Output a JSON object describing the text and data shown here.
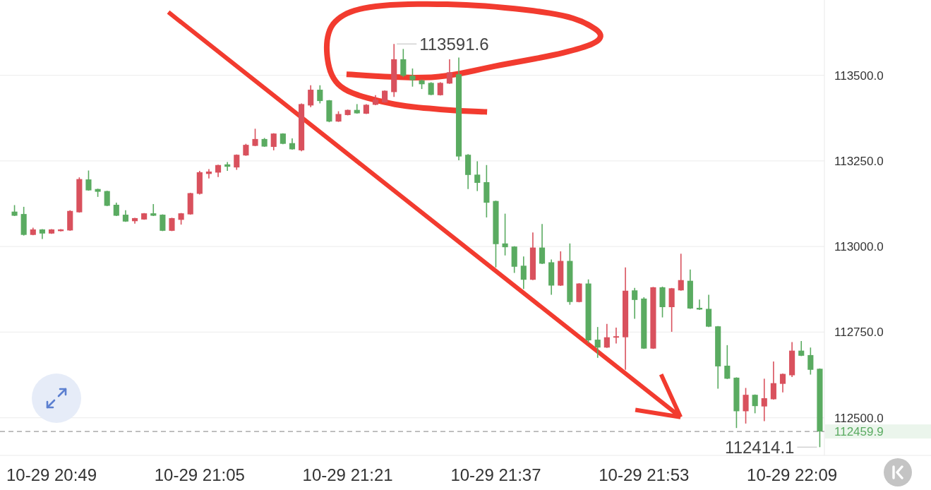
{
  "chart_data": {
    "type": "candlestick",
    "categories": [
      null,
      null,
      null,
      null,
      "10-29 20:49",
      null,
      null,
      null,
      null,
      null,
      null,
      null,
      null,
      null,
      null,
      null,
      null,
      null,
      null,
      null,
      "10-29 21:05",
      null,
      null,
      null,
      null,
      null,
      null,
      null,
      null,
      null,
      null,
      null,
      null,
      null,
      null,
      null,
      "10-29 21:21",
      null,
      null,
      null,
      null,
      null,
      null,
      null,
      null,
      null,
      null,
      null,
      null,
      null,
      null,
      null,
      "10-29 21:37",
      null,
      null,
      null,
      null,
      null,
      null,
      null,
      null,
      null,
      null,
      null,
      null,
      null,
      null,
      null,
      "10-29 21:53",
      null,
      null,
      null,
      null,
      null,
      null,
      null,
      null,
      null,
      null,
      null,
      null,
      null,
      null,
      null,
      "10-29 22:09",
      null,
      null,
      null
    ],
    "ohlc": [
      [
        113102,
        113121,
        113089,
        113090
      ],
      [
        113095,
        113116,
        113032,
        113034
      ],
      [
        113034,
        113055,
        113033,
        113050
      ],
      [
        113050,
        113051,
        113022,
        113038
      ],
      [
        113038,
        113051,
        113037,
        113050
      ],
      [
        113045,
        113051,
        113044,
        113050
      ],
      [
        113047,
        113106,
        113046,
        113104
      ],
      [
        113100,
        113202,
        113099,
        113197
      ],
      [
        113196,
        113222,
        113163,
        113164
      ],
      [
        113168,
        113169,
        113145,
        113160
      ],
      [
        113162,
        113163,
        113118,
        113119
      ],
      [
        113122,
        113128,
        113089,
        113090
      ],
      [
        113093,
        113106,
        113072,
        113073
      ],
      [
        113074,
        113084,
        113067,
        113083
      ],
      [
        113079,
        113098,
        113078,
        113097
      ],
      [
        113097,
        113124,
        113089,
        113090
      ],
      [
        113093,
        113094,
        113045,
        113046
      ],
      [
        113046,
        113084,
        113045,
        113083
      ],
      [
        113078,
        113098,
        113064,
        113097
      ],
      [
        113094,
        113157,
        113093,
        113156
      ],
      [
        113154,
        113221,
        113152,
        113217
      ],
      [
        113212,
        113226,
        113199,
        113219
      ],
      [
        113216,
        113239,
        113203,
        113238
      ],
      [
        113240,
        113247,
        113221,
        113233
      ],
      [
        113231,
        113269,
        113224,
        113268
      ],
      [
        113266,
        113300,
        113265,
        113297
      ],
      [
        113294,
        113344,
        113293,
        113314
      ],
      [
        113314,
        113317,
        113291,
        113292
      ],
      [
        113291,
        113331,
        113281,
        113330
      ],
      [
        113330,
        113331,
        113299,
        113300
      ],
      [
        113302,
        113316,
        113283,
        113284
      ],
      [
        113281,
        113418,
        113278,
        113416
      ],
      [
        113412,
        113471,
        113407,
        113458
      ],
      [
        113458,
        113471,
        113418,
        113425
      ],
      [
        113427,
        113428,
        113363,
        113365
      ],
      [
        113365,
        113395,
        113364,
        113387
      ],
      [
        113384,
        113400,
        113383,
        113399
      ],
      [
        113399,
        113416,
        113388,
        113389
      ],
      [
        113388,
        113416,
        113387,
        113414
      ],
      [
        113414,
        113442,
        113413,
        113429
      ],
      [
        113421,
        113456,
        113420,
        113455
      ],
      [
        113451,
        113591.6,
        113437,
        113547
      ],
      [
        113547,
        113577,
        113495,
        113499
      ],
      [
        113499,
        113520,
        113467,
        113486
      ],
      [
        113485,
        113488,
        113460,
        113474
      ],
      [
        113478,
        113480,
        113442,
        113443
      ],
      [
        113442,
        113480,
        113441,
        113478
      ],
      [
        113476,
        113547,
        113475,
        113509
      ],
      [
        113503,
        113552,
        113252,
        113263
      ],
      [
        113268,
        113270,
        113168,
        113209
      ],
      [
        113210,
        113249,
        113162,
        113186
      ],
      [
        113188,
        113238,
        113085,
        113128
      ],
      [
        113133,
        113134,
        112939,
        113007
      ],
      [
        113009,
        113096,
        112974,
        112998
      ],
      [
        113000,
        113001,
        112923,
        112941
      ],
      [
        112944,
        112971,
        112876,
        112903
      ],
      [
        112903,
        113041,
        112902,
        112997
      ],
      [
        112997,
        113066,
        112949,
        112950
      ],
      [
        112954,
        112962,
        112859,
        112886
      ],
      [
        112886,
        112986,
        112885,
        112958
      ],
      [
        112958,
        113009,
        112830,
        112838
      ],
      [
        112838,
        112893,
        112837,
        112892
      ],
      [
        112892,
        112904,
        112718,
        112726
      ],
      [
        112728,
        112765,
        112675,
        112705
      ],
      [
        112705,
        112774,
        112704,
        112735
      ],
      [
        112734,
        112763,
        112717,
        112738
      ],
      [
        112735,
        112939,
        112640,
        112871
      ],
      [
        112872,
        112879,
        112789,
        112844
      ],
      [
        112848,
        112852,
        112701,
        112702
      ],
      [
        112702,
        112882,
        112701,
        112881
      ],
      [
        112881,
        112883,
        112793,
        112823
      ],
      [
        112823,
        112879,
        112751,
        112878
      ],
      [
        112872,
        112979,
        112871,
        112902
      ],
      [
        112900,
        112933,
        112818,
        112819
      ],
      [
        112821,
        112845,
        112815,
        112816
      ],
      [
        112818,
        112859,
        112765,
        112766
      ],
      [
        112767,
        112768,
        112585,
        112650
      ],
      [
        112652,
        112712,
        112613,
        112614
      ],
      [
        112617,
        112618,
        112470,
        112519
      ],
      [
        112519,
        112587,
        112483,
        112567
      ],
      [
        112567,
        112568,
        112513,
        112534
      ],
      [
        112533,
        112614,
        112490,
        112557
      ],
      [
        112554,
        112664,
        112553,
        112601
      ],
      [
        112599,
        112629,
        112574,
        112628
      ],
      [
        112624,
        112721,
        112619,
        112696
      ],
      [
        112696,
        112724,
        112680,
        112681
      ],
      [
        112683,
        112705,
        112626,
        112640
      ],
      [
        112643,
        112644,
        112414.1,
        112459.9
      ]
    ],
    "colors": [
      "#5aab61",
      "#5aab61",
      "#d9515d",
      "#5aab61",
      "#d9515d",
      "#d9515d",
      "#d9515d",
      "#d9515d",
      "#5aab61",
      "#5aab61",
      "#5aab61",
      "#5aab61",
      "#5aab61",
      "#d9515d",
      "#d9515d",
      "#5aab61",
      "#5aab61",
      "#d9515d",
      "#d9515d",
      "#d9515d",
      "#d9515d",
      "#d9515d",
      "#d9515d",
      "#5aab61",
      "#d9515d",
      "#d9515d",
      "#d9515d",
      "#5aab61",
      "#d9515d",
      "#5aab61",
      "#5aab61",
      "#d9515d",
      "#d9515d",
      "#5aab61",
      "#5aab61",
      "#d9515d",
      "#d9515d",
      "#5aab61",
      "#d9515d",
      "#d9515d",
      "#d9515d",
      "#d9515d",
      "#5aab61",
      "#5aab61",
      "#5aab61",
      "#5aab61",
      "#d9515d",
      "#d9515d",
      "#5aab61",
      "#5aab61",
      "#5aab61",
      "#5aab61",
      "#5aab61",
      "#5aab61",
      "#5aab61",
      "#5aab61",
      "#d9515d",
      "#5aab61",
      "#5aab61",
      "#d9515d",
      "#5aab61",
      "#d9515d",
      "#5aab61",
      "#5aab61",
      "#d9515d",
      "#d9515d",
      "#d9515d",
      "#5aab61",
      "#5aab61",
      "#d9515d",
      "#5aab61",
      "#d9515d",
      "#d9515d",
      "#5aab61",
      "#5aab61",
      "#5aab61",
      "#5aab61",
      "#5aab61",
      "#5aab61",
      "#d9515d",
      "#5aab61",
      "#d9515d",
      "#d9515d",
      "#d9515d",
      "#d9515d",
      "#5aab61",
      "#5aab61",
      "#5aab61"
    ],
    "ylim": [
      112390,
      113720
    ],
    "yticks": [
      {
        "value": 113500,
        "label": "113500.0"
      },
      {
        "value": 113250,
        "label": "113250.0"
      },
      {
        "value": 113000,
        "label": "113000.0"
      },
      {
        "value": 112750,
        "label": "112750.0"
      },
      {
        "value": 112500,
        "label": "112500.0"
      }
    ],
    "grid": "y",
    "ref_lines": [
      {
        "axis": "y",
        "value": 112459.9,
        "label": "112459.9",
        "color": "#9a9a9a",
        "line_style": "dashed"
      }
    ],
    "annotations": [
      "113591.6",
      "112414.1"
    ]
  }
}
